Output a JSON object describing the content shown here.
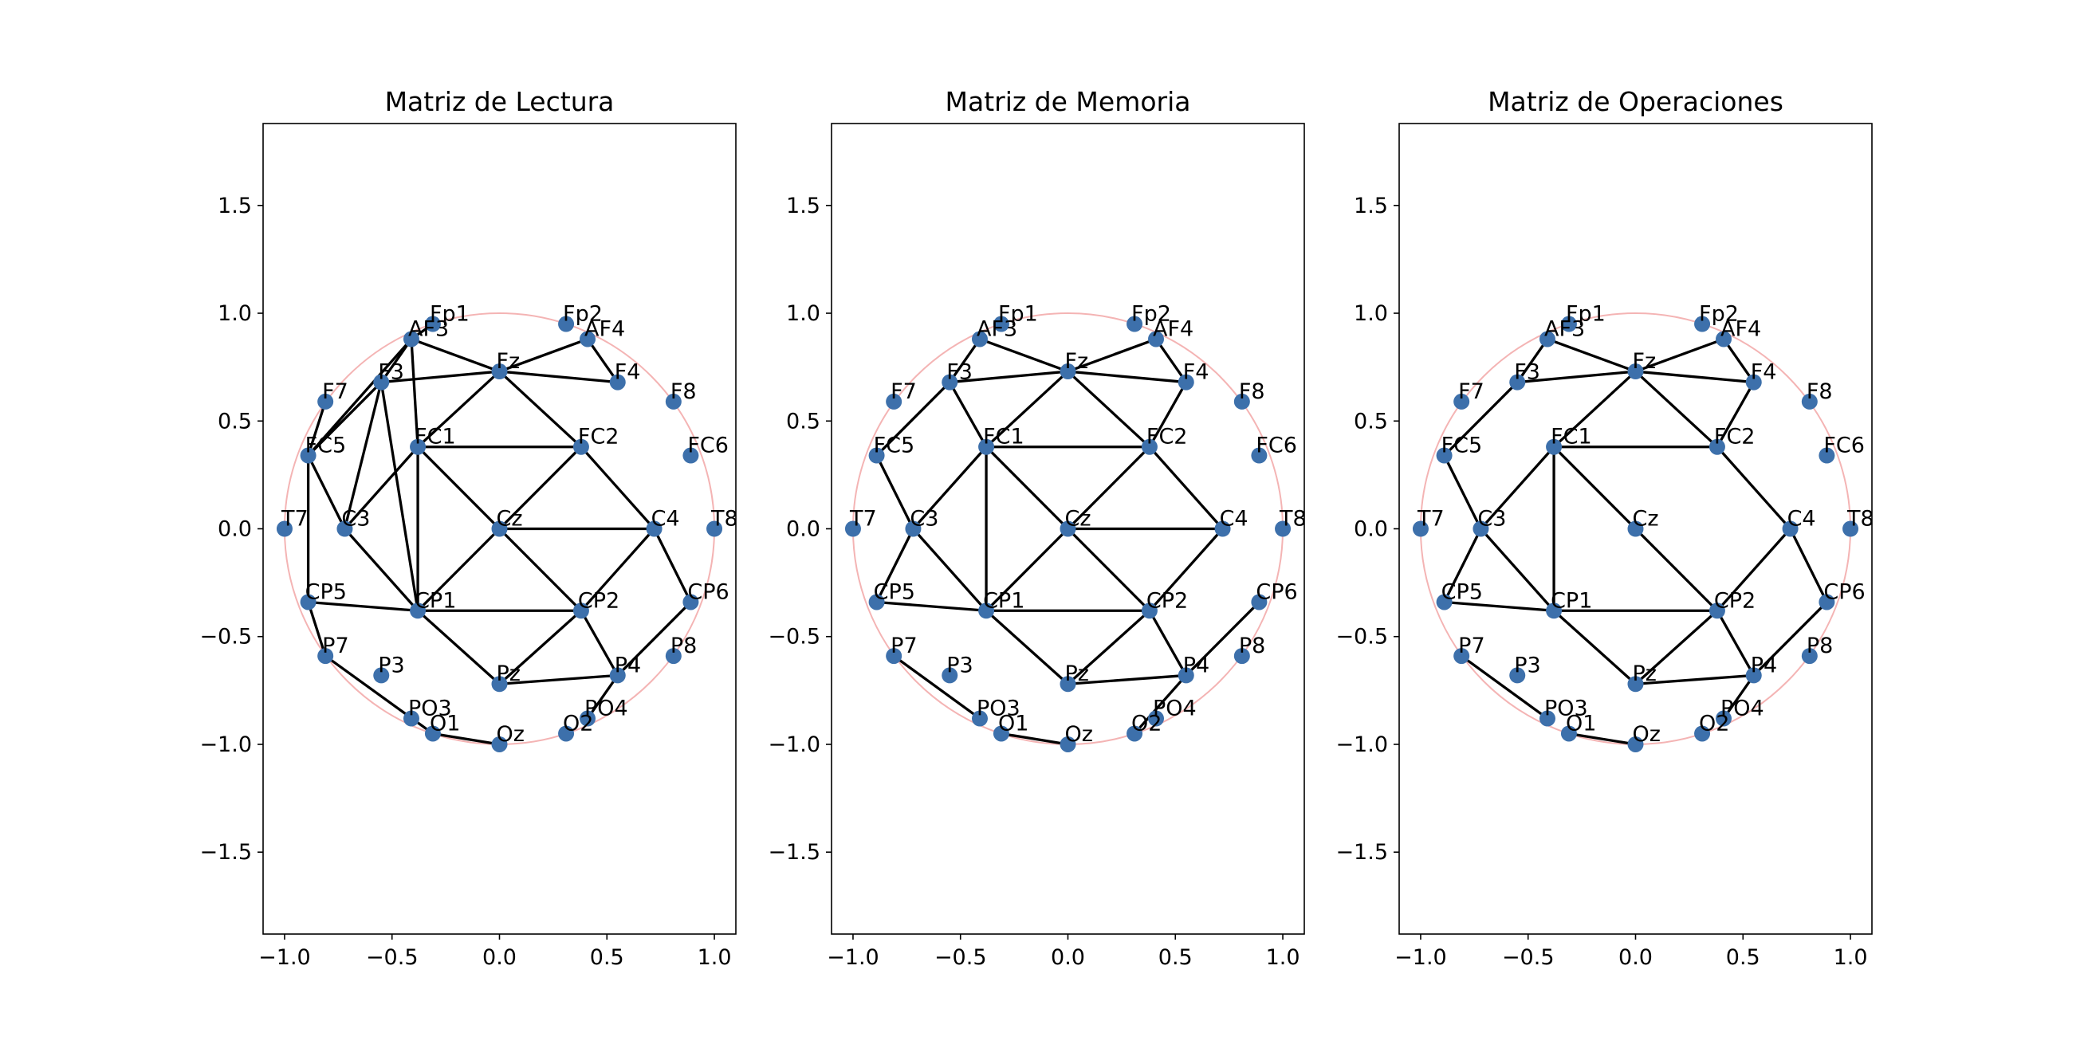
{
  "chart_data": [
    {
      "type": "network",
      "title": "Matriz de Lectura",
      "nodes": {
        "labels": [
          "Fp1",
          "Fp2",
          "AF3",
          "AF4",
          "F7",
          "F3",
          "Fz",
          "F4",
          "F8",
          "FC5",
          "FC1",
          "FC2",
          "FC6",
          "T7",
          "C3",
          "Cz",
          "C4",
          "T8",
          "CP5",
          "CP1",
          "CP2",
          "CP6",
          "P7",
          "P3",
          "Pz",
          "P4",
          "P8",
          "PO3",
          "PO4",
          "O1",
          "Oz",
          "O2"
        ],
        "x": [
          -0.31,
          0.31,
          -0.41,
          0.41,
          -0.81,
          -0.55,
          0,
          0.55,
          0.81,
          -0.89,
          -0.38,
          0.38,
          0.89,
          -1,
          -0.72,
          0,
          0.72,
          1,
          -0.89,
          -0.38,
          0.38,
          0.89,
          -0.81,
          -0.55,
          0,
          0.55,
          0.81,
          -0.41,
          0.41,
          -0.31,
          0,
          0.31
        ],
        "y": [
          0.95,
          0.95,
          0.88,
          0.88,
          0.59,
          0.68,
          0.73,
          0.68,
          0.59,
          0.34,
          0.38,
          0.38,
          0.34,
          0,
          0,
          0,
          0,
          0,
          -0.34,
          -0.38,
          -0.38,
          -0.34,
          -0.59,
          -0.68,
          -0.72,
          -0.68,
          -0.59,
          -0.88,
          -0.88,
          -0.95,
          -1,
          -0.95
        ]
      },
      "edges": [
        [
          "Fp1",
          "AF3"
        ],
        [
          "AF3",
          "Fz"
        ],
        [
          "AF3",
          "F3"
        ],
        [
          "AF3",
          "FC5"
        ],
        [
          "AF3",
          "FC1"
        ],
        [
          "F7",
          "FC5"
        ],
        [
          "F3",
          "FC5"
        ],
        [
          "F3",
          "Fz"
        ],
        [
          "F3",
          "C3"
        ],
        [
          "F3",
          "CP1"
        ],
        [
          "Fz",
          "AF4"
        ],
        [
          "AF4",
          "F4"
        ],
        [
          "Fz",
          "F4"
        ],
        [
          "Fz",
          "FC1"
        ],
        [
          "Fz",
          "FC2"
        ],
        [
          "FC1",
          "FC2"
        ],
        [
          "FC1",
          "C3"
        ],
        [
          "FC1",
          "Cz"
        ],
        [
          "FC2",
          "Cz"
        ],
        [
          "FC2",
          "C4"
        ],
        [
          "FC1",
          "CP1"
        ],
        [
          "FC5",
          "C3"
        ],
        [
          "FC5",
          "CP5"
        ],
        [
          "C3",
          "CP1"
        ],
        [
          "CP5",
          "CP1"
        ],
        [
          "Cz",
          "C4"
        ],
        [
          "Cz",
          "CP1"
        ],
        [
          "Cz",
          "CP2"
        ],
        [
          "CP1",
          "CP2"
        ],
        [
          "CP2",
          "C4"
        ],
        [
          "CP2",
          "P4"
        ],
        [
          "CP2",
          "Pz"
        ],
        [
          "CP1",
          "Pz"
        ],
        [
          "Pz",
          "P4"
        ],
        [
          "C4",
          "CP6"
        ],
        [
          "CP6",
          "P4"
        ],
        [
          "P4",
          "PO4"
        ],
        [
          "CP5",
          "P7"
        ],
        [
          "P7",
          "O1"
        ],
        [
          "O1",
          "Oz"
        ]
      ],
      "xlim": [
        -1.1,
        1.1
      ],
      "ylim": [
        -1.88,
        1.88
      ],
      "xticks": [
        {
          "value": -1,
          "label": "−1.0"
        },
        {
          "value": -0.5,
          "label": "−0.5"
        },
        {
          "value": 0,
          "label": "0.0"
        },
        {
          "value": 0.5,
          "label": "0.5"
        },
        {
          "value": 1,
          "label": "1.0"
        }
      ],
      "yticks": [
        {
          "value": -1.5,
          "label": "−1.5"
        },
        {
          "value": -1,
          "label": "−1.0"
        },
        {
          "value": -0.5,
          "label": "−0.5"
        },
        {
          "value": 0,
          "label": "0.0"
        },
        {
          "value": 0.5,
          "label": "0.5"
        },
        {
          "value": 1,
          "label": "1.0"
        },
        {
          "value": 1.5,
          "label": "1.5"
        }
      ],
      "node_color": "#3d70ab",
      "edge_color": "#000000",
      "circle": {
        "radius": 1,
        "color": "#f4b4b4"
      }
    },
    {
      "type": "network",
      "title": "Matriz de Memoria",
      "nodes": {
        "labels": [
          "Fp1",
          "Fp2",
          "AF3",
          "AF4",
          "F7",
          "F3",
          "Fz",
          "F4",
          "F8",
          "FC5",
          "FC1",
          "FC2",
          "FC6",
          "T7",
          "C3",
          "Cz",
          "C4",
          "T8",
          "CP5",
          "CP1",
          "CP2",
          "CP6",
          "P7",
          "P3",
          "Pz",
          "P4",
          "P8",
          "PO3",
          "PO4",
          "O1",
          "Oz",
          "O2"
        ],
        "x": [
          -0.31,
          0.31,
          -0.41,
          0.41,
          -0.81,
          -0.55,
          0,
          0.55,
          0.81,
          -0.89,
          -0.38,
          0.38,
          0.89,
          -1,
          -0.72,
          0,
          0.72,
          1,
          -0.89,
          -0.38,
          0.38,
          0.89,
          -0.81,
          -0.55,
          0,
          0.55,
          0.81,
          -0.41,
          0.41,
          -0.31,
          0,
          0.31
        ],
        "y": [
          0.95,
          0.95,
          0.88,
          0.88,
          0.59,
          0.68,
          0.73,
          0.68,
          0.59,
          0.34,
          0.38,
          0.38,
          0.34,
          0,
          0,
          0,
          0,
          0,
          -0.34,
          -0.38,
          -0.38,
          -0.34,
          -0.59,
          -0.68,
          -0.72,
          -0.68,
          -0.59,
          -0.88,
          -0.88,
          -0.95,
          -1,
          -0.95
        ]
      },
      "edges": [
        [
          "AF3",
          "Fz"
        ],
        [
          "AF3",
          "F3"
        ],
        [
          "F3",
          "Fz"
        ],
        [
          "F3",
          "FC5"
        ],
        [
          "F3",
          "FC1"
        ],
        [
          "Fz",
          "FC1"
        ],
        [
          "Fz",
          "FC2"
        ],
        [
          "Fz",
          "AF4"
        ],
        [
          "Fz",
          "F4"
        ],
        [
          "AF4",
          "F4"
        ],
        [
          "F4",
          "FC2"
        ],
        [
          "FC5",
          "C3"
        ],
        [
          "FC1",
          "FC2"
        ],
        [
          "FC1",
          "C3"
        ],
        [
          "FC1",
          "Cz"
        ],
        [
          "FC2",
          "Cz"
        ],
        [
          "FC2",
          "C4"
        ],
        [
          "FC1",
          "CP1"
        ],
        [
          "C3",
          "CP5"
        ],
        [
          "C3",
          "CP1"
        ],
        [
          "CP5",
          "CP1"
        ],
        [
          "Cz",
          "CP1"
        ],
        [
          "Cz",
          "CP2"
        ],
        [
          "Cz",
          "C4"
        ],
        [
          "CP1",
          "CP2"
        ],
        [
          "C4",
          "CP2"
        ],
        [
          "CP1",
          "Pz"
        ],
        [
          "CP2",
          "Pz"
        ],
        [
          "CP2",
          "P4"
        ],
        [
          "Pz",
          "P4"
        ],
        [
          "CP6",
          "P4"
        ],
        [
          "P4",
          "O2"
        ],
        [
          "P7",
          "PO3"
        ],
        [
          "O1",
          "Oz"
        ]
      ],
      "xlim": [
        -1.1,
        1.1
      ],
      "ylim": [
        -1.88,
        1.88
      ],
      "xticks": [
        {
          "value": -1,
          "label": "−1.0"
        },
        {
          "value": -0.5,
          "label": "−0.5"
        },
        {
          "value": 0,
          "label": "0.0"
        },
        {
          "value": 0.5,
          "label": "0.5"
        },
        {
          "value": 1,
          "label": "1.0"
        }
      ],
      "yticks": [
        {
          "value": -1.5,
          "label": "−1.5"
        },
        {
          "value": -1,
          "label": "−1.0"
        },
        {
          "value": -0.5,
          "label": "−0.5"
        },
        {
          "value": 0,
          "label": "0.0"
        },
        {
          "value": 0.5,
          "label": "0.5"
        },
        {
          "value": 1,
          "label": "1.0"
        },
        {
          "value": 1.5,
          "label": "1.5"
        }
      ],
      "node_color": "#3d70ab",
      "edge_color": "#000000",
      "circle": {
        "radius": 1,
        "color": "#f4b4b4"
      }
    },
    {
      "type": "network",
      "title": "Matriz de Operaciones",
      "nodes": {
        "labels": [
          "Fp1",
          "Fp2",
          "AF3",
          "AF4",
          "F7",
          "F3",
          "Fz",
          "F4",
          "F8",
          "FC5",
          "FC1",
          "FC2",
          "FC6",
          "T7",
          "C3",
          "Cz",
          "C4",
          "T8",
          "CP5",
          "CP1",
          "CP2",
          "CP6",
          "P7",
          "P3",
          "Pz",
          "P4",
          "P8",
          "PO3",
          "PO4",
          "O1",
          "Oz",
          "O2"
        ],
        "x": [
          -0.31,
          0.31,
          -0.41,
          0.41,
          -0.81,
          -0.55,
          0,
          0.55,
          0.81,
          -0.89,
          -0.38,
          0.38,
          0.89,
          -1,
          -0.72,
          0,
          0.72,
          1,
          -0.89,
          -0.38,
          0.38,
          0.89,
          -0.81,
          -0.55,
          0,
          0.55,
          0.81,
          -0.41,
          0.41,
          -0.31,
          0,
          0.31
        ],
        "y": [
          0.95,
          0.95,
          0.88,
          0.88,
          0.59,
          0.68,
          0.73,
          0.68,
          0.59,
          0.34,
          0.38,
          0.38,
          0.34,
          0,
          0,
          0,
          0,
          0,
          -0.34,
          -0.38,
          -0.38,
          -0.34,
          -0.59,
          -0.68,
          -0.72,
          -0.68,
          -0.59,
          -0.88,
          -0.88,
          -0.95,
          -1,
          -0.95
        ]
      },
      "edges": [
        [
          "AF3",
          "Fz"
        ],
        [
          "AF3",
          "F3"
        ],
        [
          "F3",
          "Fz"
        ],
        [
          "F3",
          "FC5"
        ],
        [
          "Fz",
          "FC1"
        ],
        [
          "Fz",
          "FC2"
        ],
        [
          "Fz",
          "AF4"
        ],
        [
          "Fz",
          "F4"
        ],
        [
          "AF4",
          "F4"
        ],
        [
          "F4",
          "FC2"
        ],
        [
          "FC1",
          "FC2"
        ],
        [
          "FC1",
          "C3"
        ],
        [
          "FC5",
          "C3"
        ],
        [
          "FC1",
          "CP1"
        ],
        [
          "FC1",
          "CP2"
        ],
        [
          "C3",
          "CP5"
        ],
        [
          "C3",
          "CP1"
        ],
        [
          "CP5",
          "CP1"
        ],
        [
          "CP1",
          "CP2"
        ],
        [
          "CP1",
          "Pz"
        ],
        [
          "CP2",
          "Pz"
        ],
        [
          "CP2",
          "P4"
        ],
        [
          "Pz",
          "P4"
        ],
        [
          "CP2",
          "C4"
        ],
        [
          "FC2",
          "C4"
        ],
        [
          "C4",
          "CP6"
        ],
        [
          "CP6",
          "P4"
        ],
        [
          "P4",
          "PO4"
        ],
        [
          "P7",
          "PO3"
        ],
        [
          "O1",
          "Oz"
        ]
      ],
      "xlim": [
        -1.1,
        1.1
      ],
      "ylim": [
        -1.88,
        1.88
      ],
      "xticks": [
        {
          "value": -1,
          "label": "−1.0"
        },
        {
          "value": -0.5,
          "label": "−0.5"
        },
        {
          "value": 0,
          "label": "0.0"
        },
        {
          "value": 0.5,
          "label": "0.5"
        },
        {
          "value": 1,
          "label": "1.0"
        }
      ],
      "yticks": [
        {
          "value": -1.5,
          "label": "−1.5"
        },
        {
          "value": -1,
          "label": "−1.0"
        },
        {
          "value": -0.5,
          "label": "−0.5"
        },
        {
          "value": 0,
          "label": "0.0"
        },
        {
          "value": 0.5,
          "label": "0.5"
        },
        {
          "value": 1,
          "label": "1.0"
        },
        {
          "value": 1.5,
          "label": "1.5"
        }
      ],
      "node_color": "#3d70ab",
      "edge_color": "#000000",
      "circle": {
        "radius": 1,
        "color": "#f4b4b4"
      }
    }
  ]
}
